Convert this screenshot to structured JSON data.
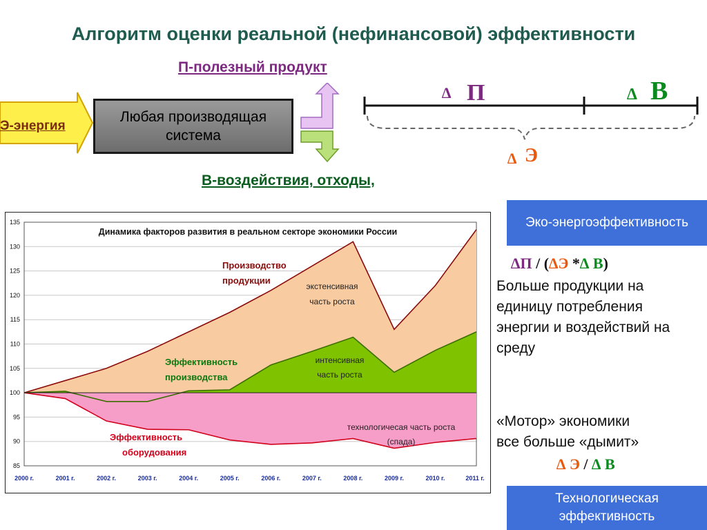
{
  "header": {
    "title": "Алгоритм оценки реальной (нефинансовой) эффективности"
  },
  "diagram": {
    "useful_product": "П-полезный продукт",
    "system": "Любая производящая система",
    "energy": "Э-энергия",
    "impacts": "В-воздействия, отходы,",
    "scale": {
      "delta": "∆",
      "p": "П",
      "v": "В",
      "e": "Э"
    }
  },
  "chart_data": {
    "type": "area",
    "title": "Динамика факторов развития в реальном секторе экономики России",
    "categories": [
      "2000 г.",
      "2001 г.",
      "2002 г.",
      "2003 г.",
      "2004 г.",
      "2005 г.",
      "2006 г.",
      "2007 г.",
      "2008 г.",
      "2009 г.",
      "2010 г.",
      "2011 г."
    ],
    "ylim": [
      85,
      135
    ],
    "yticks": [
      85,
      90,
      95,
      100,
      105,
      110,
      115,
      120,
      125,
      130,
      135
    ],
    "grid": true,
    "series": [
      {
        "name": "Производство продукции",
        "values": [
          100,
          102.5,
          105,
          108.5,
          112.5,
          116.5,
          121,
          126,
          131,
          113,
          122,
          133.5
        ],
        "color": "#f9cba0",
        "line": "#8b0a0a"
      },
      {
        "name": "Эффективность производства",
        "values": [
          100,
          100.3,
          98.2,
          98.2,
          100.4,
          100.6,
          105.7,
          108.5,
          111.4,
          104.2,
          108.7,
          112.5
        ],
        "color": "#7fc200",
        "line": "#3a6e00"
      },
      {
        "name": "Эффективность оборудования",
        "values": [
          100,
          98.8,
          94.2,
          92.5,
          92.4,
          90.3,
          89.4,
          89.7,
          90.6,
          88.6,
          89.8,
          90.6
        ],
        "color": "#f79ec8",
        "line": "#d1001a"
      }
    ],
    "annotations": {
      "production_1": "Производство",
      "production_2": "продукции",
      "extensive_1": "экстенсивная",
      "extensive_2": "часть роста",
      "efficiency_1": "Эффективность",
      "efficiency_2": "производства",
      "intensive_1": "интенсивная",
      "intensive_2": "часть роста",
      "tech_1": "технологичесая часть роста",
      "tech_2": "(спада)",
      "equip_1": "Эффективность",
      "equip_2": "оборудования"
    }
  },
  "right_panel": {
    "eco_title": "Эко-энергоэффективность",
    "formula1": {
      "dp": "∆П",
      "slash": " / (",
      "de": "∆Э",
      "star": " *",
      "dv": "∆ В",
      "close": ")"
    },
    "text1": [
      "Больше продукции на",
      "единицу потребления",
      "энергии и воздействий на",
      "среду"
    ],
    "text2": [
      "«Мотор» экономики",
      "все больше «дымит»"
    ],
    "formula2": {
      "de": "∆ Э",
      "slash": " / ",
      "dv": "∆ В"
    },
    "tech_title": "Технологическая эффективность"
  },
  "colors": {
    "title": "#1f5b4f",
    "blue_box": "#3f6fd8",
    "p": "#7b2a7f",
    "v": "#0a8a1f",
    "e": "#e85a10"
  }
}
